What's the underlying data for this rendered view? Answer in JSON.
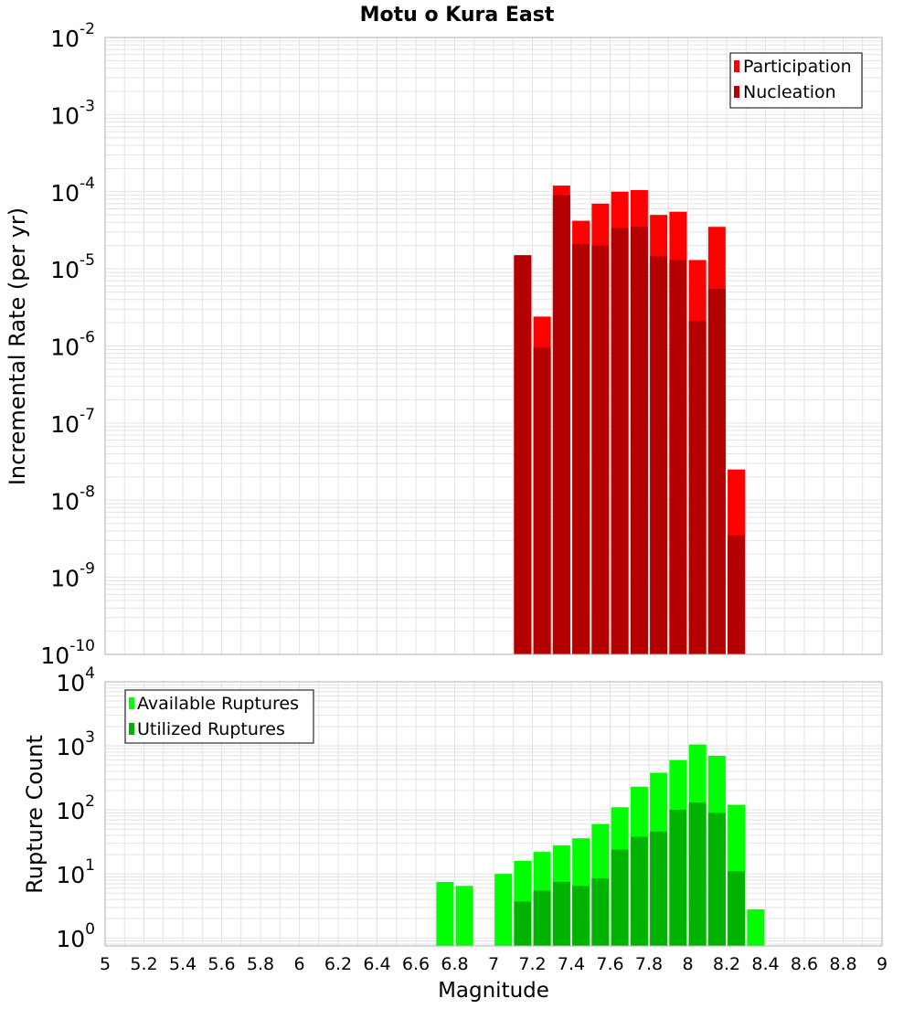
{
  "title": "Motu o Kura East",
  "colors": {
    "participation": "#ff0000",
    "nucleation": "#b30000",
    "available": "#00ff00",
    "utilized": "#00b300",
    "grid": "#e3e3e3",
    "frame": "#b0b0b0"
  },
  "chart_data": [
    {
      "type": "bar",
      "panel": "top",
      "ylabel": "Incremental Rate (per yr)",
      "y_scale": "log",
      "ylim": [
        1e-10,
        0.01
      ],
      "y_ticks": [
        {
          "base": "10",
          "exp": "-2"
        },
        {
          "base": "10",
          "exp": "-3"
        },
        {
          "base": "10",
          "exp": "-4"
        },
        {
          "base": "10",
          "exp": "-5"
        },
        {
          "base": "10",
          "exp": "-6"
        },
        {
          "base": "10",
          "exp": "-7"
        },
        {
          "base": "10",
          "exp": "-8"
        },
        {
          "base": "10",
          "exp": "-9"
        },
        {
          "base": "10",
          "exp": "-10"
        }
      ],
      "legend_position": "top-right",
      "grid": true,
      "x": [
        7.15,
        7.25,
        7.35,
        7.45,
        7.55,
        7.65,
        7.75,
        7.85,
        7.95,
        8.05,
        8.15,
        8.25
      ],
      "series": [
        {
          "name": "Participation",
          "color": "#ff0000",
          "values": [
            1.5e-05,
            2.4e-06,
            0.00012,
            4.2e-05,
            7e-05,
            0.0001,
            0.000105,
            5e-05,
            5.5e-05,
            1.3e-05,
            3.5e-05,
            2.5e-08
          ]
        },
        {
          "name": "Nucleation",
          "color": "#b30000",
          "values": [
            1.5e-05,
            9.5e-07,
            9e-05,
            2.1e-05,
            2e-05,
            3.4e-05,
            3.5e-05,
            1.45e-05,
            1.3e-05,
            2.1e-06,
            5.5e-06,
            3.5e-09
          ]
        }
      ]
    },
    {
      "type": "bar",
      "panel": "bottom",
      "ylabel": "Rupture Count",
      "xlabel": "Magnitude",
      "y_scale": "log",
      "ylim": [
        0.75,
        10000
      ],
      "y_ticks": [
        {
          "base": "10",
          "exp": "4"
        },
        {
          "base": "10",
          "exp": "3"
        },
        {
          "base": "10",
          "exp": "2"
        },
        {
          "base": "10",
          "exp": "1"
        },
        {
          "base": "10",
          "exp": "0"
        }
      ],
      "xlim": [
        5,
        9
      ],
      "x_ticks": [
        "5",
        "5.2",
        "5.4",
        "5.6",
        "5.8",
        "6",
        "6.2",
        "6.4",
        "6.6",
        "6.8",
        "7",
        "7.2",
        "7.4",
        "7.6",
        "7.8",
        "8",
        "8.2",
        "8.4",
        "8.6",
        "8.8",
        "9"
      ],
      "legend_position": "top-left",
      "grid": true,
      "series": [
        {
          "name": "Available Ruptures",
          "color": "#00ff00",
          "x": [
            6.75,
            6.85,
            7.05,
            7.15,
            7.25,
            7.35,
            7.45,
            7.55,
            7.65,
            7.75,
            7.85,
            7.95,
            8.05,
            8.15,
            8.25,
            8.35
          ],
          "values": [
            7.5,
            6.5,
            10,
            16,
            22,
            28,
            36,
            60,
            110,
            230,
            380,
            600,
            1050,
            700,
            120,
            2.8
          ]
        },
        {
          "name": "Utilized Ruptures",
          "color": "#00b300",
          "x": [
            7.15,
            7.25,
            7.35,
            7.45,
            7.55,
            7.65,
            7.75,
            7.85,
            7.95,
            8.05,
            8.15,
            8.25
          ],
          "values": [
            3.7,
            5.5,
            7.5,
            6.5,
            8.5,
            24,
            38,
            46,
            100,
            130,
            90,
            11
          ]
        }
      ]
    }
  ]
}
